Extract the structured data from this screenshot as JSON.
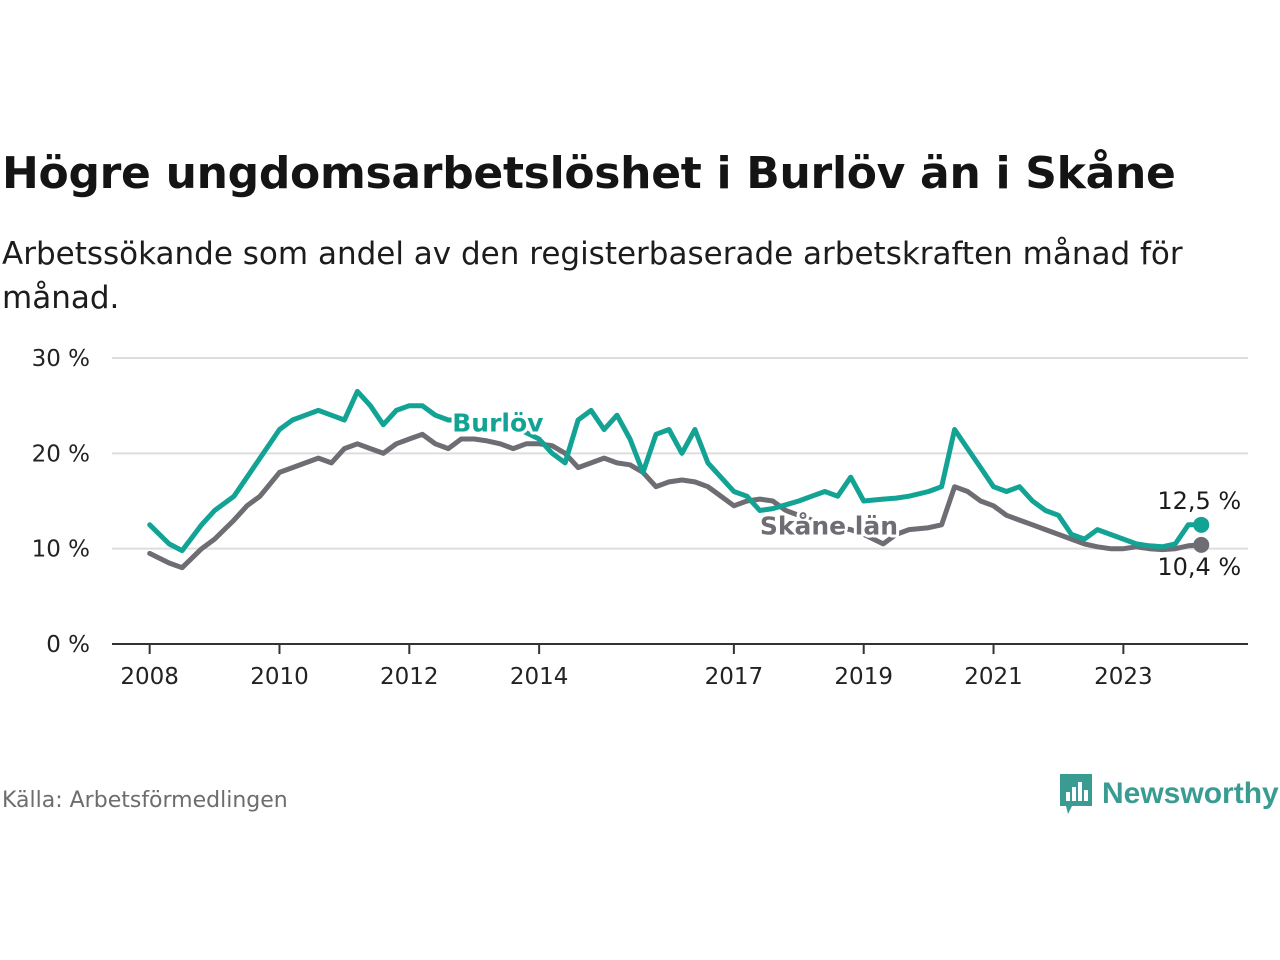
{
  "title": "Högre ungdomsarbetslöshet i Burlöv än i Skåne",
  "subtitle": "Arbetssökande som andel av den registerbaserade arbetskraften månad för månad.",
  "source": "Källa: Arbetsförmedlingen",
  "brand": "Newsworthy",
  "colors": {
    "burlov": "#12a395",
    "skane": "#6f6d74",
    "grid": "#dddddd",
    "axis": "#333333"
  },
  "chart_data": {
    "type": "line",
    "title": "Högre ungdomsarbetslöshet i Burlöv än i Skåne",
    "xlabel": "",
    "ylabel": "",
    "ylim": [
      0,
      30
    ],
    "xlim": [
      2007.42,
      2024.92
    ],
    "yticks": [
      0,
      10,
      20,
      30
    ],
    "ytick_labels": [
      "0 %",
      "10 %",
      "20 %",
      "30 %"
    ],
    "xticks": [
      2008,
      2010,
      2012,
      2014,
      2017,
      2019,
      2021,
      2023
    ],
    "xtick_labels": [
      "2008",
      "2010",
      "2012",
      "2014",
      "2017",
      "2019",
      "2021",
      "2023"
    ],
    "series": [
      {
        "name": "Burlöv",
        "label": "Burlöv",
        "color": "#12a395",
        "end_label": "12,5 %",
        "x": [
          2008.0,
          2008.3,
          2008.5,
          2008.8,
          2009.0,
          2009.3,
          2009.5,
          2009.7,
          2010.0,
          2010.2,
          2010.4,
          2010.6,
          2010.8,
          2011.0,
          2011.2,
          2011.4,
          2011.6,
          2011.8,
          2012.0,
          2012.2,
          2012.4,
          2012.6,
          2013.5,
          2013.7,
          2014.0,
          2014.2,
          2014.4,
          2014.6,
          2014.8,
          2015.0,
          2015.2,
          2015.4,
          2015.6,
          2015.8,
          2016.0,
          2016.2,
          2016.4,
          2016.6,
          2016.8,
          2017.0,
          2017.2,
          2017.4,
          2017.6,
          2017.8,
          2018.0,
          2018.2,
          2018.4,
          2018.6,
          2018.8,
          2019.0,
          2019.3,
          2019.5,
          2019.7,
          2020.0,
          2020.2,
          2020.4,
          2020.6,
          2020.8,
          2021.0,
          2021.2,
          2021.4,
          2021.6,
          2021.8,
          2022.0,
          2022.2,
          2022.4,
          2022.6,
          2022.8,
          2023.0,
          2023.2,
          2023.4,
          2023.6,
          2023.8,
          2023.9,
          2024.0,
          2024.2
        ],
        "values": [
          12.5,
          10.5,
          9.8,
          12.5,
          14.0,
          15.5,
          17.5,
          19.5,
          22.5,
          23.5,
          24.0,
          24.5,
          24.0,
          23.5,
          26.5,
          25.0,
          23.0,
          24.5,
          25.0,
          25.0,
          24.0,
          23.5,
          23.5,
          22.5,
          21.5,
          20.0,
          19.0,
          23.5,
          24.5,
          22.5,
          24.0,
          21.5,
          18.0,
          22.0,
          22.5,
          20.0,
          22.5,
          19.0,
          17.5,
          16.0,
          15.5,
          14.0,
          14.2,
          14.6,
          15.0,
          15.5,
          16.0,
          15.5,
          17.5,
          15.0,
          15.2,
          15.3,
          15.5,
          16.0,
          16.5,
          22.5,
          20.5,
          18.5,
          16.5,
          16.0,
          16.5,
          15.0,
          14.0,
          13.5,
          11.5,
          11.0,
          12.0,
          11.5,
          11.0,
          10.5,
          10.3,
          10.2,
          10.5,
          11.5,
          12.5,
          12.5
        ]
      },
      {
        "name": "Skåne län",
        "label": "Skåne län",
        "color": "#6f6d74",
        "end_label": "10,4 %",
        "x": [
          2008.0,
          2008.3,
          2008.5,
          2008.8,
          2009.0,
          2009.3,
          2009.5,
          2009.7,
          2010.0,
          2010.2,
          2010.4,
          2010.6,
          2010.8,
          2011.0,
          2011.2,
          2011.4,
          2011.6,
          2011.8,
          2012.0,
          2012.2,
          2012.4,
          2012.6,
          2012.8,
          2013.0,
          2013.2,
          2013.4,
          2013.6,
          2013.8,
          2014.0,
          2014.2,
          2014.4,
          2014.6,
          2014.8,
          2015.0,
          2015.2,
          2015.4,
          2015.6,
          2015.8,
          2016.0,
          2016.2,
          2016.4,
          2016.6,
          2016.8,
          2017.0,
          2017.2,
          2017.4,
          2017.6,
          2017.8,
          2018.0,
          2018.2,
          2018.4,
          2018.6,
          2018.8,
          2019.0,
          2019.3,
          2019.5,
          2019.7,
          2020.0,
          2020.2,
          2020.4,
          2020.6,
          2020.8,
          2021.0,
          2021.2,
          2021.4,
          2021.6,
          2021.8,
          2022.0,
          2022.2,
          2022.4,
          2022.6,
          2022.8,
          2023.0,
          2023.2,
          2023.4,
          2023.6,
          2023.8,
          2024.0,
          2024.2
        ],
        "values": [
          9.5,
          8.5,
          8.0,
          10.0,
          11.0,
          13.0,
          14.5,
          15.5,
          18.0,
          18.5,
          19.0,
          19.5,
          19.0,
          20.5,
          21.0,
          20.5,
          20.0,
          21.0,
          21.5,
          22.0,
          21.0,
          20.5,
          21.5,
          21.5,
          21.3,
          21.0,
          20.5,
          21.0,
          21.0,
          20.8,
          20.0,
          18.5,
          19.0,
          19.5,
          19.0,
          18.8,
          18.0,
          16.5,
          17.0,
          17.2,
          17.0,
          16.5,
          15.5,
          14.5,
          15.0,
          15.2,
          15.0,
          14.0,
          13.5,
          13.0,
          12.5,
          12.2,
          12.0,
          11.5,
          10.5,
          11.5,
          12.0,
          12.2,
          12.5,
          16.5,
          16.0,
          15.0,
          14.5,
          13.5,
          13.0,
          12.5,
          12.0,
          11.5,
          11.0,
          10.5,
          10.2,
          10.0,
          10.0,
          10.2,
          10.0,
          9.9,
          10.0,
          10.3,
          10.4
        ]
      }
    ]
  }
}
